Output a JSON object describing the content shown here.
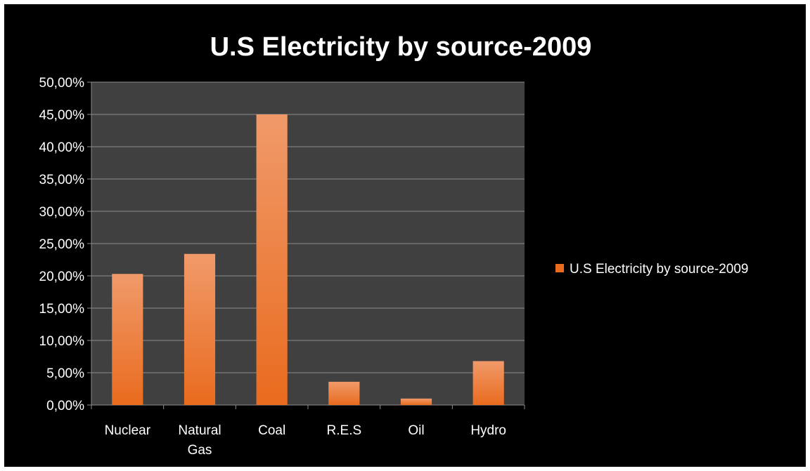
{
  "chart_data": {
    "type": "bar",
    "title": "U.S Electricity by source-2009",
    "xlabel": "",
    "ylabel": "",
    "categories": [
      [
        "Nuclear"
      ],
      [
        "Natural",
        "Gas"
      ],
      [
        "Coal"
      ],
      [
        "R.E.S"
      ],
      [
        "Oil"
      ],
      [
        "Hydro"
      ]
    ],
    "series": [
      {
        "name": "U.S Electricity by source-2009",
        "values": [
          20.3,
          23.4,
          45.0,
          3.6,
          1.0,
          6.8
        ]
      }
    ],
    "ylim": [
      0,
      50
    ],
    "y_ticks": [
      "0,00%",
      "5,00%",
      "10,00%",
      "15,00%",
      "20,00%",
      "25,00%",
      "30,00%",
      "35,00%",
      "40,00%",
      "45,00%",
      "50,00%"
    ],
    "grid": true,
    "legend_position": "right",
    "colors": {
      "background": "#000000",
      "plot_area": "#404040",
      "grid": "#8c8c8c",
      "bar_top": "#f09a6a",
      "bar_bottom": "#e96b1e",
      "text": "#ffffff"
    }
  }
}
